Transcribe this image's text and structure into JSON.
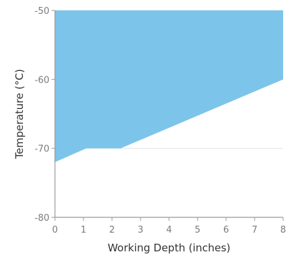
{
  "chart_data": {
    "type": "area",
    "title": "",
    "xlabel": "Working Depth (inches)",
    "ylabel": "Temperature (°C)",
    "xlim": [
      0,
      8
    ],
    "ylim": [
      -80,
      -50
    ],
    "x_ticks": [
      0,
      1,
      2,
      3,
      4,
      5,
      6,
      7,
      8
    ],
    "y_ticks": [
      -50,
      -60,
      -70,
      -80
    ],
    "grid": "horizontal",
    "legend": "none",
    "fill_color": "#7cc4ea",
    "grid_color": "#e2e2e2",
    "axis_color": "#9a9a9a",
    "series": [
      {
        "upper": -50,
        "boundary": [
          {
            "x": 0,
            "y": -72
          },
          {
            "x": 1.1,
            "y": -70
          },
          {
            "x": 2.3,
            "y": -70
          },
          {
            "x": 8,
            "y": -60
          }
        ]
      }
    ]
  }
}
